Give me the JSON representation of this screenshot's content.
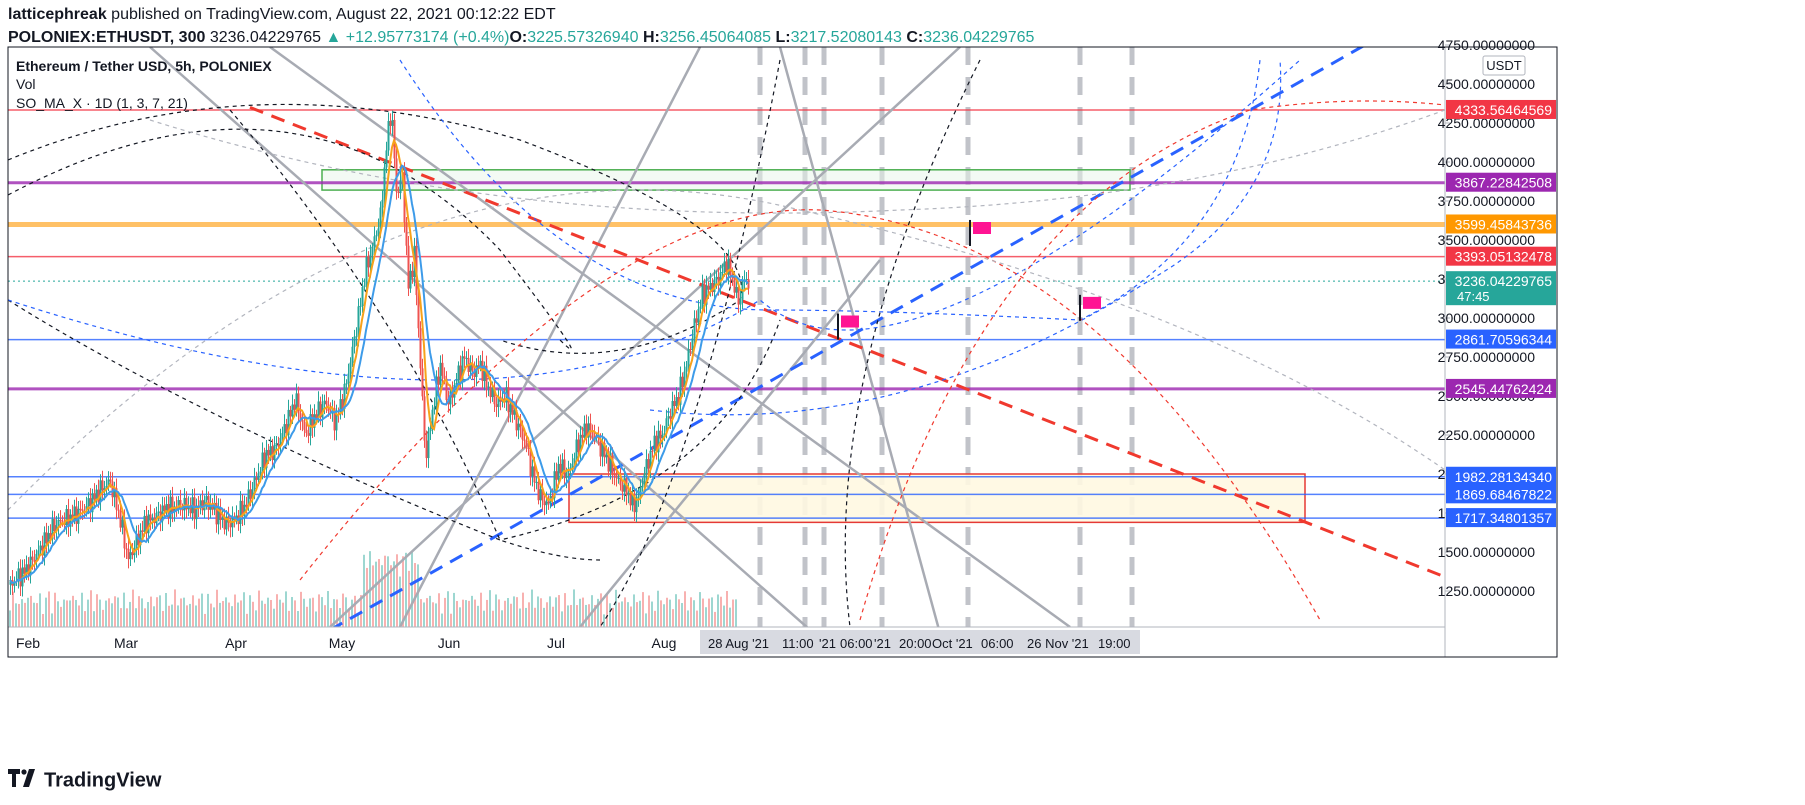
{
  "header": {
    "author": "latticephreak",
    "published_text": "published on TradingView.com, August 22, 2021 00:12:22 EDT",
    "symbol": "POLONIEX:ETHUSDT, 300",
    "last": "3236.04229765",
    "change": "▲ +12.95773174 (+0.4%)",
    "o_label": "O:",
    "o_value": "3225.57326940",
    "h_label": "H:",
    "h_value": "3256.45064085",
    "l_label": "L:",
    "l_value": "3217.52080143",
    "c_label": "C:",
    "c_value": "3236.04229765"
  },
  "legend": {
    "title": "Ethereum / Tether USD, 5h, POLONIEX",
    "vol": "Vol",
    "indicator": "SO_MA_X · 1D (1, 3, 7, 21)"
  },
  "currency": "USDT",
  "brand": "TradingView",
  "colors": {
    "up": "#26a69a",
    "down": "#ef5350",
    "ma_fast": "#f7a21b",
    "ma_slow": "#3d9be9",
    "hline_blue": "#2962ff",
    "hline_red": "#f23645",
    "hline_purple": "#9c27b0",
    "hline_orange": "#ff9800"
  },
  "chart_data": {
    "type": "candlestick",
    "ylim": [
      1000,
      4750
    ],
    "x_ticks": [
      "Feb",
      "Mar",
      "Apr",
      "May",
      "Jun",
      "Jul",
      "Aug"
    ],
    "y_ticks": [
      "1250.00000000",
      "1500.00000000",
      "1750.00000000",
      "2000.00000000",
      "2250.00000000",
      "2500.00000000",
      "2750.00000000",
      "3000.00000000",
      "3250.00000000",
      "3500.00000000",
      "3750.00000000",
      "4000.00000000",
      "4250.00000000",
      "4500.00000000",
      "4750.00000000"
    ],
    "future_date_labels": [
      "28 Aug '21",
      "11:00",
      "'21",
      "06:00",
      "'21",
      "20:00",
      "Oct '21",
      "06:00",
      "26 Nov '21",
      "19:00"
    ],
    "price_levels": [
      {
        "value": 4333.56464569,
        "label": "4333.56464569",
        "color": "#f23645"
      },
      {
        "value": 3867.22842508,
        "label": "3867.22842508",
        "color": "#9c27b0"
      },
      {
        "value": 3599.45843736,
        "label": "3599.45843736",
        "color": "#ff9800"
      },
      {
        "value": 3393.05132478,
        "label": "3393.05132478",
        "color": "#f23645"
      },
      {
        "value": 2861.70596344,
        "label": "2861.70596344",
        "color": "#2962ff"
      },
      {
        "value": 2545.44762424,
        "label": "2545.44762424",
        "color": "#9c27b0"
      },
      {
        "value": 1982.2813434,
        "label": "1982.28134340",
        "color": "#2962ff"
      },
      {
        "value": 1869.68467822,
        "label": "1869.68467822",
        "color": "#2962ff"
      },
      {
        "value": 1717.34801357,
        "label": "1717.34801357",
        "color": "#2962ff"
      }
    ],
    "last_price": {
      "value": 3236.04229765,
      "label": "3236.04229765",
      "countdown": "47:45",
      "color": "#26a69a"
    },
    "close_path": [
      [
        0,
        1290
      ],
      [
        15,
        1380
      ],
      [
        30,
        1520
      ],
      [
        45,
        1680
      ],
      [
        60,
        1720
      ],
      [
        75,
        1780
      ],
      [
        90,
        1900
      ],
      [
        100,
        1950
      ],
      [
        110,
        1700
      ],
      [
        118,
        1450
      ],
      [
        125,
        1550
      ],
      [
        135,
        1690
      ],
      [
        145,
        1720
      ],
      [
        155,
        1780
      ],
      [
        165,
        1790
      ],
      [
        175,
        1800
      ],
      [
        185,
        1770
      ],
      [
        195,
        1830
      ],
      [
        205,
        1760
      ],
      [
        215,
        1680
      ],
      [
        225,
        1710
      ],
      [
        235,
        1800
      ],
      [
        245,
        1960
      ],
      [
        255,
        2120
      ],
      [
        265,
        2160
      ],
      [
        275,
        2300
      ],
      [
        285,
        2480
      ],
      [
        295,
        2250
      ],
      [
        305,
        2380
      ],
      [
        315,
        2460
      ],
      [
        325,
        2330
      ],
      [
        335,
        2550
      ],
      [
        345,
        2900
      ],
      [
        355,
        3300
      ],
      [
        362,
        3450
      ],
      [
        370,
        3650
      ],
      [
        376,
        4100
      ],
      [
        381,
        4350
      ],
      [
        386,
        3800
      ],
      [
        392,
        3900
      ],
      [
        398,
        3200
      ],
      [
        404,
        3400
      ],
      [
        410,
        2700
      ],
      [
        415,
        2100
      ],
      [
        422,
        2400
      ],
      [
        430,
        2700
      ],
      [
        438,
        2450
      ],
      [
        446,
        2600
      ],
      [
        454,
        2750
      ],
      [
        462,
        2650
      ],
      [
        470,
        2700
      ],
      [
        478,
        2550
      ],
      [
        486,
        2450
      ],
      [
        495,
        2500
      ],
      [
        505,
        2350
      ],
      [
        515,
        2200
      ],
      [
        522,
        2000
      ],
      [
        530,
        1850
      ],
      [
        538,
        1800
      ],
      [
        548,
        2050
      ],
      [
        558,
        2000
      ],
      [
        568,
        2200
      ],
      [
        576,
        2300
      ],
      [
        584,
        2250
      ],
      [
        592,
        2150
      ],
      [
        600,
        2050
      ],
      [
        608,
        1950
      ],
      [
        616,
        1900
      ],
      [
        622,
        1800
      ],
      [
        628,
        1850
      ],
      [
        636,
        2050
      ],
      [
        644,
        2200
      ],
      [
        652,
        2250
      ],
      [
        660,
        2400
      ],
      [
        668,
        2500
      ],
      [
        676,
        2700
      ],
      [
        684,
        2950
      ],
      [
        692,
        3150
      ],
      [
        700,
        3200
      ],
      [
        708,
        3250
      ],
      [
        716,
        3350
      ],
      [
        722,
        3250
      ],
      [
        728,
        3100
      ],
      [
        734,
        3250
      ],
      [
        738,
        3236
      ]
    ]
  }
}
